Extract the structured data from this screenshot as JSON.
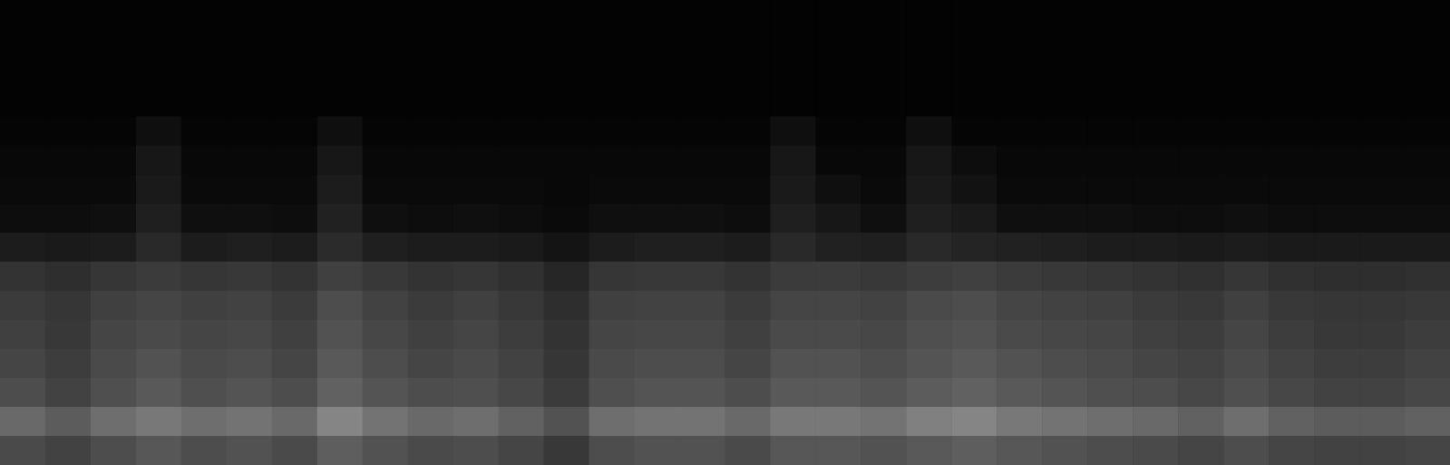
{
  "chart_data": {
    "type": "heatmap",
    "color": "gray",
    "tick_labels": false,
    "zlim": [
      0,
      100
    ],
    "cells": [
      [
        1,
        1,
        1,
        1,
        1,
        1,
        1,
        1,
        1,
        1,
        1,
        1,
        1,
        1,
        1,
        1,
        1,
        1,
        1,
        1,
        1,
        1,
        1,
        1,
        1,
        1,
        1,
        1,
        1,
        1,
        1,
        1
      ],
      [
        1,
        1,
        1,
        1,
        1,
        1,
        1,
        1,
        1,
        1,
        1,
        1,
        1,
        1,
        1,
        1,
        1,
        1,
        1,
        1,
        1,
        1,
        1,
        1,
        1,
        1,
        1,
        1,
        1,
        1,
        1,
        1
      ],
      [
        1,
        1,
        1,
        1,
        1,
        1,
        1,
        1,
        1,
        1,
        1,
        1,
        1,
        1,
        1,
        1,
        1,
        1,
        1,
        1,
        1,
        1,
        1,
        1,
        1,
        1,
        1,
        1,
        1,
        1,
        1,
        1
      ],
      [
        1,
        1,
        1,
        1,
        1,
        1,
        1,
        1,
        1,
        1,
        1,
        1,
        1,
        1,
        1,
        1,
        1,
        1,
        1,
        1,
        1,
        1,
        1,
        1,
        1,
        1,
        1,
        1,
        1,
        1,
        1,
        1
      ],
      [
        2,
        2,
        2,
        6,
        2,
        2,
        2,
        6,
        2,
        2,
        2,
        2,
        2,
        2,
        2,
        2,
        2,
        6,
        2,
        2,
        6,
        2,
        2,
        2,
        2,
        2,
        2,
        2,
        2,
        2,
        2,
        2
      ],
      [
        3,
        3,
        3,
        9,
        3,
        3,
        3,
        9,
        3,
        3,
        3,
        3,
        3,
        3,
        3,
        3,
        3,
        9,
        3,
        3,
        9,
        5,
        3,
        3,
        3,
        3,
        3,
        3,
        3,
        3,
        3,
        3
      ],
      [
        4,
        4,
        4,
        10,
        4,
        4,
        4,
        11,
        4,
        4,
        4,
        4,
        3,
        4,
        4,
        4,
        4,
        10,
        6,
        4,
        10,
        7,
        4,
        4,
        4,
        4,
        4,
        4,
        4,
        4,
        4,
        4
      ],
      [
        5,
        5,
        6,
        12,
        6,
        6,
        5,
        13,
        6,
        5,
        6,
        5,
        4,
        6,
        6,
        6,
        5,
        12,
        9,
        6,
        12,
        10,
        6,
        6,
        6,
        5,
        5,
        6,
        5,
        5,
        5,
        5
      ],
      [
        11,
        10,
        11,
        16,
        11,
        12,
        11,
        17,
        12,
        11,
        11,
        10,
        8,
        11,
        12,
        12,
        11,
        16,
        13,
        12,
        16,
        14,
        13,
        12,
        11,
        11,
        10,
        11,
        10,
        10,
        10,
        10
      ],
      [
        20,
        18,
        21,
        23,
        21,
        22,
        20,
        25,
        22,
        20,
        21,
        19,
        15,
        21,
        22,
        22,
        20,
        23,
        23,
        22,
        24,
        25,
        23,
        22,
        21,
        20,
        19,
        21,
        19,
        18,
        18,
        19
      ],
      [
        23,
        21,
        25,
        27,
        25,
        26,
        23,
        30,
        26,
        23,
        25,
        22,
        18,
        25,
        26,
        26,
        23,
        27,
        27,
        26,
        29,
        30,
        27,
        26,
        25,
        23,
        22,
        25,
        22,
        21,
        21,
        22
      ],
      [
        25,
        22,
        27,
        29,
        27,
        28,
        25,
        32,
        28,
        25,
        27,
        24,
        20,
        27,
        28,
        28,
        25,
        29,
        29,
        28,
        31,
        32,
        29,
        28,
        27,
        25,
        24,
        27,
        24,
        22,
        22,
        24
      ],
      [
        27,
        24,
        29,
        32,
        29,
        30,
        27,
        35,
        30,
        27,
        29,
        26,
        21,
        29,
        30,
        30,
        27,
        32,
        32,
        30,
        33,
        35,
        32,
        30,
        29,
        27,
        26,
        29,
        26,
        24,
        24,
        26
      ],
      [
        30,
        26,
        31,
        35,
        31,
        33,
        30,
        38,
        33,
        30,
        31,
        28,
        23,
        31,
        33,
        33,
        30,
        35,
        35,
        33,
        36,
        38,
        35,
        33,
        31,
        30,
        28,
        31,
        28,
        26,
        26,
        28
      ],
      [
        41,
        36,
        43,
        47,
        43,
        45,
        41,
        52,
        45,
        41,
        43,
        38,
        32,
        43,
        45,
        45,
        41,
        47,
        47,
        45,
        50,
        52,
        47,
        45,
        43,
        41,
        38,
        43,
        38,
        36,
        36,
        38
      ],
      [
        29,
        26,
        30,
        34,
        30,
        32,
        29,
        37,
        32,
        29,
        30,
        27,
        22,
        30,
        32,
        32,
        29,
        34,
        34,
        32,
        35,
        37,
        34,
        32,
        30,
        29,
        27,
        30,
        27,
        26,
        26,
        27
      ]
    ]
  }
}
